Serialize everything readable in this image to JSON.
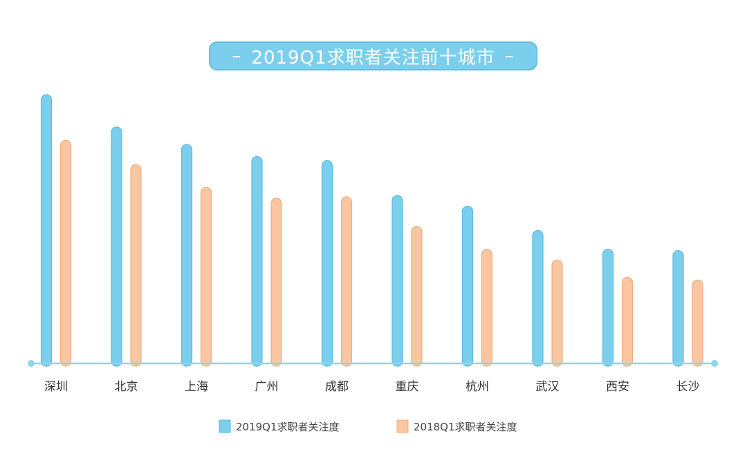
{
  "chart_data": {
    "type": "bar",
    "title": "2019Q1求职者关注前十城市",
    "categories": [
      "深圳",
      "北京",
      "上海",
      "广州",
      "成都",
      "重庆",
      "杭州",
      "武汉",
      "西安",
      "长沙"
    ],
    "series": [
      {
        "name": "2019Q1求职者关注度",
        "color": "#7ccfec",
        "values": [
          100,
          88,
          81.5,
          77,
          75.5,
          62.5,
          58.5,
          49.5,
          42.5,
          42
        ]
      },
      {
        "name": "2018Q1求职者关注度",
        "color": "#f9c6a1",
        "values": [
          83,
          74,
          65.5,
          61.5,
          62,
          51,
          42.5,
          38.5,
          32,
          31
        ]
      }
    ],
    "axis_color": "#8dd6ee",
    "ylim": [
      0,
      100
    ],
    "grid": false,
    "y_axis_visible": false,
    "legend_position": "bottom-center"
  }
}
